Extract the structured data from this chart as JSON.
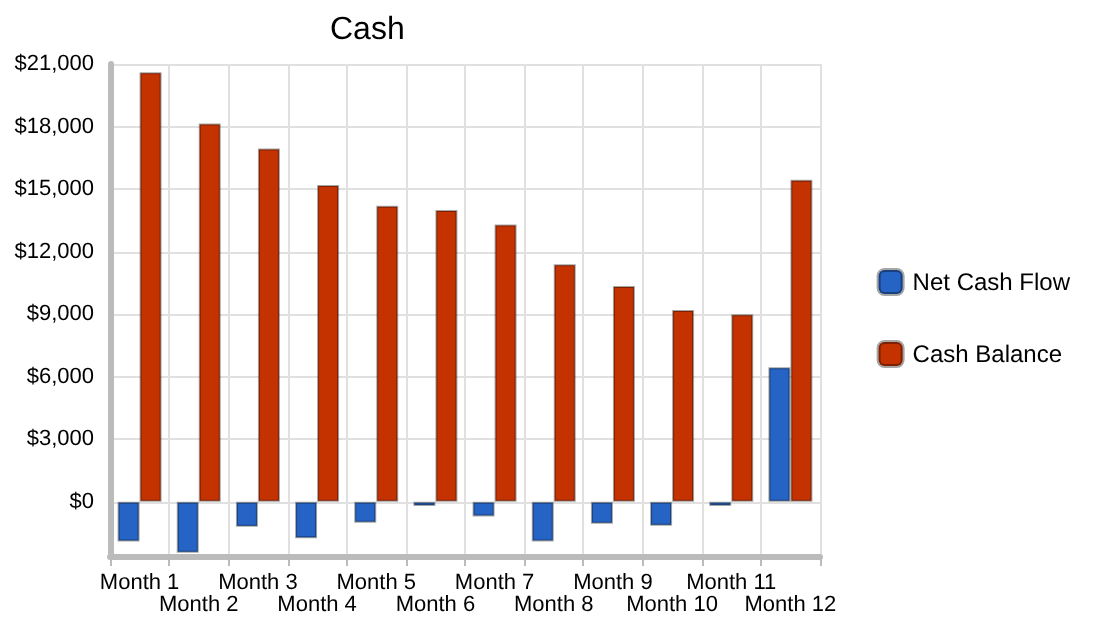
{
  "chart_data": {
    "type": "bar",
    "title": "Cash",
    "categories": [
      "Month 1",
      "Month 2",
      "Month 3",
      "Month 4",
      "Month 5",
      "Month 6",
      "Month 7",
      "Month 8",
      "Month 9",
      "Month 10",
      "Month 11",
      "Month 12"
    ],
    "series": [
      {
        "name": "Net Cash Flow",
        "color": "#2563c4",
        "values": [
          -1900,
          -2450,
          -1200,
          -1750,
          -1000,
          -200,
          -700,
          -1900,
          -1050,
          -1150,
          -200,
          6450
        ]
      },
      {
        "name": "Cash Balance",
        "color": "#c43200",
        "values": [
          20600,
          18150,
          16950,
          15200,
          14200,
          14000,
          13300,
          11400,
          10350,
          9200,
          9000,
          15450
        ]
      }
    ],
    "ylim": [
      -2600,
      21000
    ],
    "yticks": [
      {
        "value": 0,
        "label": "$0"
      },
      {
        "value": 3000,
        "label": "$3,000"
      },
      {
        "value": 6000,
        "label": "$6,000"
      },
      {
        "value": 9000,
        "label": "$9,000"
      },
      {
        "value": 12000,
        "label": "$12,000"
      },
      {
        "value": 15000,
        "label": "$15,000"
      },
      {
        "value": 18000,
        "label": "$18,000"
      },
      {
        "value": 21000,
        "label": "$21,000"
      }
    ],
    "grid": true,
    "legend": "right"
  }
}
